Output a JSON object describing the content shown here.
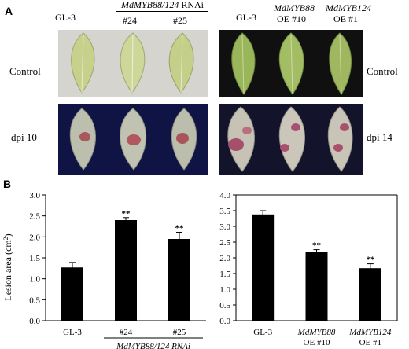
{
  "figure": {
    "panel_a_label": "A",
    "panel_b_label": "B"
  },
  "panel_a": {
    "left_header": {
      "control_genotype": "GL-3",
      "rnai_group_gene": "MdMYB88/124",
      "rnai_group_suffix": "RNAi",
      "line1": "#24",
      "line2": "#25"
    },
    "right_header": {
      "control_genotype": "GL-3",
      "oe1_gene": "MdMYB88",
      "oe1_line": "OE #10",
      "oe2_gene": "MdMYB124",
      "oe2_line": "OE #1"
    },
    "row_labels": {
      "left_top": "Control",
      "left_bottom": "dpi 10",
      "right_top": "Control",
      "right_bottom": "dpi 14"
    }
  },
  "chart_data": [
    {
      "type": "bar",
      "categories": [
        "GL-3",
        "#24",
        "#25"
      ],
      "group_label": "MdMYB88/124 RNAi",
      "values": [
        1.27,
        2.4,
        1.95
      ],
      "errors": [
        0.12,
        0.06,
        0.16
      ],
      "significance": [
        "",
        "**",
        "**"
      ],
      "ylabel": "Lesion area (cm²)",
      "ylabel_base": "Lesion area (cm",
      "ylabel_sup": "2",
      "ylabel_close": ")",
      "ylim": [
        0,
        3.0
      ],
      "ticks": [
        "0.0",
        "0.5",
        "1.0",
        "1.5",
        "2.0",
        "2.5",
        "3.0"
      ],
      "bar_color": "#000000"
    },
    {
      "type": "bar",
      "categories": [
        "GL-3",
        "MdMYB88",
        "MdMYB124"
      ],
      "category_sublabels": [
        "",
        "OE #10",
        "OE #1"
      ],
      "values": [
        3.38,
        2.2,
        1.67
      ],
      "errors": [
        0.12,
        0.06,
        0.14
      ],
      "significance": [
        "",
        "**",
        "**"
      ],
      "ylim": [
        0,
        4.0
      ],
      "ticks": [
        "0.0",
        "0.5",
        "1.0",
        "1.5",
        "2.0",
        "2.5",
        "3.0",
        "3.5",
        "4.0"
      ],
      "bar_color": "#000000"
    }
  ]
}
